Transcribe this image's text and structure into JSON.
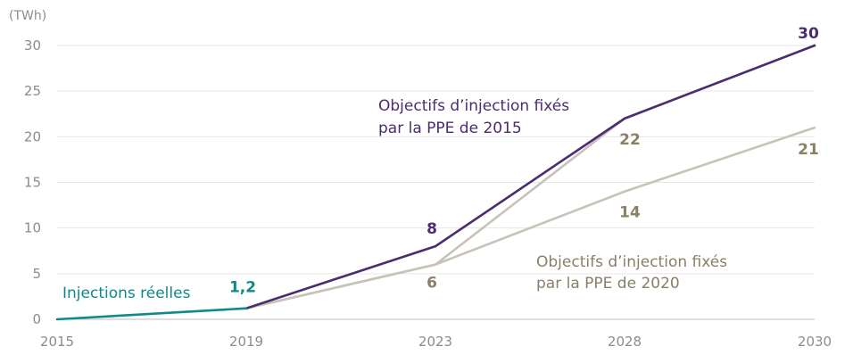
{
  "chart_data": {
    "type": "line",
    "unit_label": "(TWh)",
    "x": [
      "2015",
      "2019",
      "2023",
      "2028",
      "2030"
    ],
    "ylim": [
      0,
      30
    ],
    "yticks": [
      "0",
      "5",
      "10",
      "15",
      "20",
      "25",
      "30"
    ],
    "grid": "horizontal",
    "series": [
      {
        "name": "Injections réelles",
        "color": "#0f8a8a",
        "points": [
          {
            "x": "2015",
            "y": 0
          },
          {
            "x": "2019",
            "y": 1.2
          }
        ]
      },
      {
        "name_lines": [
          "Objectifs d’injection fixés",
          "par la PPE de 2015"
        ],
        "color": "#4b2c6e",
        "points": [
          {
            "x": "2019",
            "y": 1.2
          },
          {
            "x": "2023",
            "y": 8
          },
          {
            "x": "2028",
            "y": 22
          },
          {
            "x": "2030",
            "y": 30
          }
        ]
      },
      {
        "color": "#c9c2b9",
        "points": [
          {
            "x": "2019",
            "y": 1.2
          },
          {
            "x": "2023",
            "y": 6
          },
          {
            "x": "2028",
            "y": 22
          },
          {
            "x": "2030",
            "y": 30
          }
        ]
      },
      {
        "name_lines": [
          "Objectifs d’injection fixés",
          "par la PPE de 2020"
        ],
        "color": "#c9c2b9",
        "points": [
          {
            "x": "2019",
            "y": 1.2
          },
          {
            "x": "2023",
            "y": 6
          },
          {
            "x": "2028",
            "y": 14
          },
          {
            "x": "2030",
            "y": 21
          }
        ]
      }
    ],
    "data_labels": [
      {
        "text": "1,2",
        "x": "2019",
        "y": 1.2,
        "color": "#0f8a8a"
      },
      {
        "text": "8",
        "x": "2023",
        "y": 8,
        "color": "#4b2c6e"
      },
      {
        "text": "30",
        "x": "2030",
        "y": 30,
        "color": "#4b2c6e"
      },
      {
        "text": "6",
        "x": "2023",
        "y": 6,
        "color": "#8a8068"
      },
      {
        "text": "22",
        "x": "2028",
        "y": 22,
        "color": "#8a8068"
      },
      {
        "text": "14",
        "x": "2028",
        "y": 14,
        "color": "#8a8068"
      },
      {
        "text": "21",
        "x": "2030",
        "y": 21,
        "color": "#8a8068"
      }
    ],
    "annotation_colors": {
      "reelles": "#0f8a8a",
      "ppe2015": "#4b2c6e",
      "ppe2020": "#8a8068"
    }
  }
}
